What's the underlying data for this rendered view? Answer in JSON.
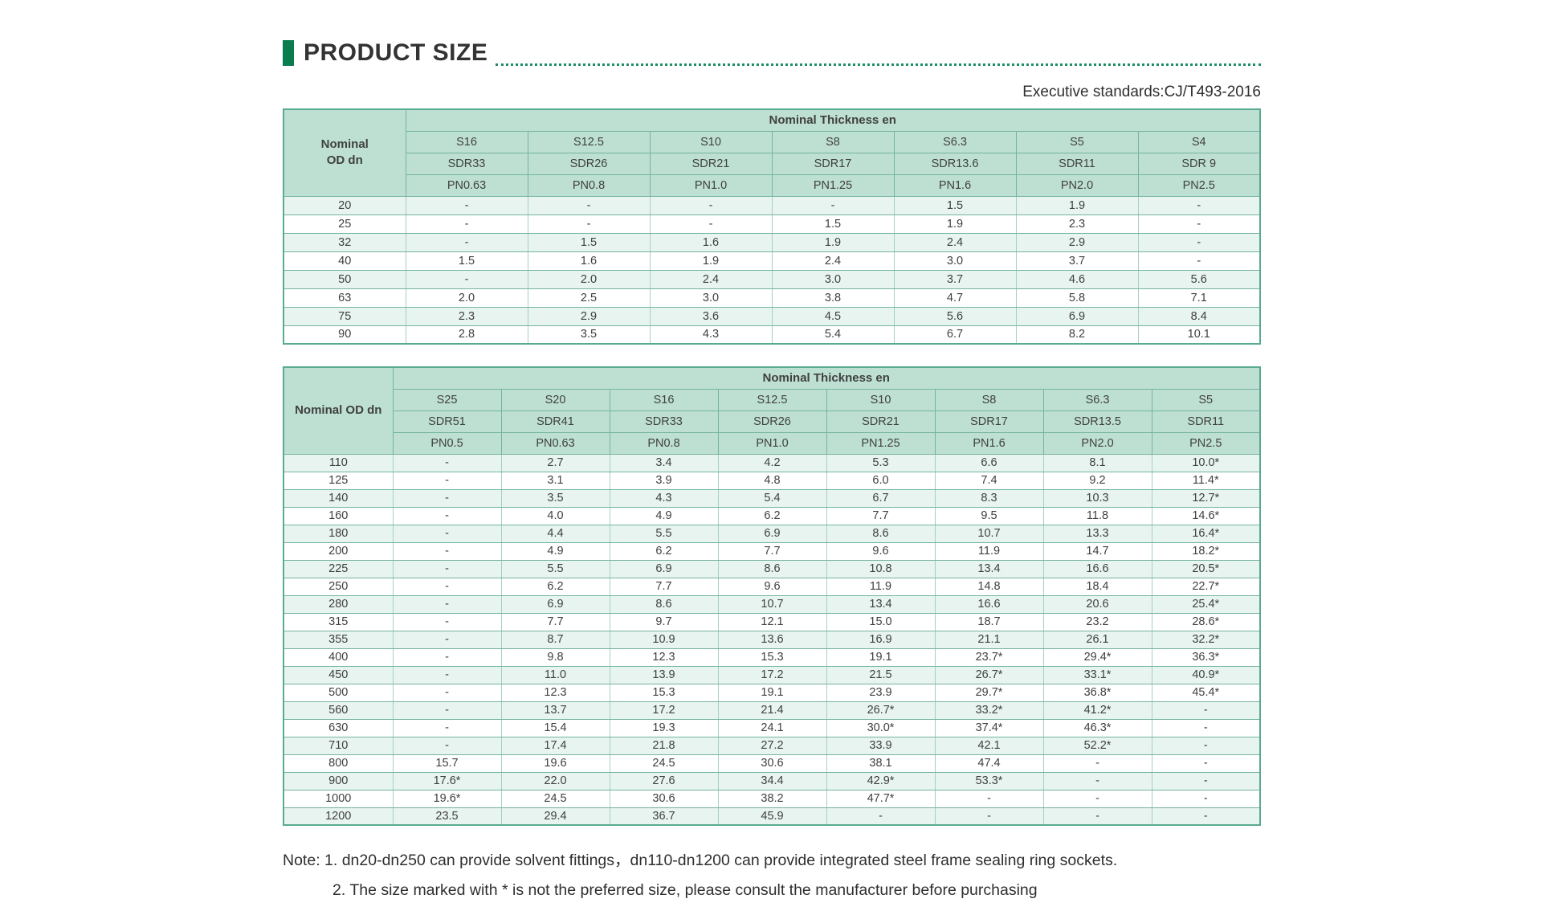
{
  "page": {
    "title": "PRODUCT SIZE",
    "standard": "Executive standards:CJ/T493-2016",
    "notes": [
      "Note: 1. dn20-dn250 can provide solvent fittings，dn110-dn1200 can provide integrated steel frame sealing ring sockets.",
      "2. The size marked with * is not the preferred size, please consult the manufacturer before purchasing"
    ]
  },
  "colors": {
    "accent": "#0a7d4f",
    "header_fill": "#bee0d3",
    "row_tint": "#e8f4ef",
    "border": "#74b4a0"
  },
  "table1": {
    "corner_line1": "Nominal",
    "corner_line2": "OD dn",
    "group_header": "Nominal Thickness en",
    "s_row": [
      "S16",
      "S12.5",
      "S10",
      "S8",
      "S6.3",
      "S5",
      "S4"
    ],
    "sdr_row": [
      "SDR33",
      "SDR26",
      "SDR21",
      "SDR17",
      "SDR13.6",
      "SDR11",
      "SDR 9"
    ],
    "pn_row": [
      "PN0.63",
      "PN0.8",
      "PN1.0",
      "PN1.25",
      "PN1.6",
      "PN2.0",
      "PN2.5"
    ],
    "rows": [
      {
        "dn": "20",
        "values": [
          "-",
          "-",
          "-",
          "-",
          "1.5",
          "1.9",
          "-"
        ]
      },
      {
        "dn": "25",
        "values": [
          "-",
          "-",
          "-",
          "1.5",
          "1.9",
          "2.3",
          "-"
        ]
      },
      {
        "dn": "32",
        "values": [
          "-",
          "1.5",
          "1.6",
          "1.9",
          "2.4",
          "2.9",
          "-"
        ]
      },
      {
        "dn": "40",
        "values": [
          "1.5",
          "1.6",
          "1.9",
          "2.4",
          "3.0",
          "3.7",
          "-"
        ]
      },
      {
        "dn": "50",
        "values": [
          "-",
          "2.0",
          "2.4",
          "3.0",
          "3.7",
          "4.6",
          "5.6"
        ]
      },
      {
        "dn": "63",
        "values": [
          "2.0",
          "2.5",
          "3.0",
          "3.8",
          "4.7",
          "5.8",
          "7.1"
        ]
      },
      {
        "dn": "75",
        "values": [
          "2.3",
          "2.9",
          "3.6",
          "4.5",
          "5.6",
          "6.9",
          "8.4"
        ]
      },
      {
        "dn": "90",
        "values": [
          "2.8",
          "3.5",
          "4.3",
          "5.4",
          "6.7",
          "8.2",
          "10.1"
        ]
      }
    ]
  },
  "table2": {
    "corner_label": "Nominal OD dn",
    "group_header": "Nominal Thickness en",
    "s_row": [
      "S25",
      "S20",
      "S16",
      "S12.5",
      "S10",
      "S8",
      "S6.3",
      "S5"
    ],
    "sdr_row": [
      "SDR51",
      "SDR41",
      "SDR33",
      "SDR26",
      "SDR21",
      "SDR17",
      "SDR13.5",
      "SDR11"
    ],
    "pn_row": [
      "PN0.5",
      "PN0.63",
      "PN0.8",
      "PN1.0",
      "PN1.25",
      "PN1.6",
      "PN2.0",
      "PN2.5"
    ],
    "rows": [
      {
        "dn": "110",
        "values": [
          "-",
          "2.7",
          "3.4",
          "4.2",
          "5.3",
          "6.6",
          "8.1",
          "10.0*"
        ]
      },
      {
        "dn": "125",
        "values": [
          "-",
          "3.1",
          "3.9",
          "4.8",
          "6.0",
          "7.4",
          "9.2",
          "11.4*"
        ]
      },
      {
        "dn": "140",
        "values": [
          "-",
          "3.5",
          "4.3",
          "5.4",
          "6.7",
          "8.3",
          "10.3",
          "12.7*"
        ]
      },
      {
        "dn": "160",
        "values": [
          "-",
          "4.0",
          "4.9",
          "6.2",
          "7.7",
          "9.5",
          "11.8",
          "14.6*"
        ]
      },
      {
        "dn": "180",
        "values": [
          "-",
          "4.4",
          "5.5",
          "6.9",
          "8.6",
          "10.7",
          "13.3",
          "16.4*"
        ]
      },
      {
        "dn": "200",
        "values": [
          "-",
          "4.9",
          "6.2",
          "7.7",
          "9.6",
          "11.9",
          "14.7",
          "18.2*"
        ]
      },
      {
        "dn": "225",
        "values": [
          "-",
          "5.5",
          "6.9",
          "8.6",
          "10.8",
          "13.4",
          "16.6",
          "20.5*"
        ]
      },
      {
        "dn": "250",
        "values": [
          "-",
          "6.2",
          "7.7",
          "9.6",
          "11.9",
          "14.8",
          "18.4",
          "22.7*"
        ]
      },
      {
        "dn": "280",
        "values": [
          "-",
          "6.9",
          "8.6",
          "10.7",
          "13.4",
          "16.6",
          "20.6",
          "25.4*"
        ]
      },
      {
        "dn": "315",
        "values": [
          "-",
          "7.7",
          "9.7",
          "12.1",
          "15.0",
          "18.7",
          "23.2",
          "28.6*"
        ]
      },
      {
        "dn": "355",
        "values": [
          "-",
          "8.7",
          "10.9",
          "13.6",
          "16.9",
          "21.1",
          "26.1",
          "32.2*"
        ]
      },
      {
        "dn": "400",
        "values": [
          "-",
          "9.8",
          "12.3",
          "15.3",
          "19.1",
          "23.7*",
          "29.4*",
          "36.3*"
        ]
      },
      {
        "dn": "450",
        "values": [
          "-",
          "11.0",
          "13.9",
          "17.2",
          "21.5",
          "26.7*",
          "33.1*",
          "40.9*"
        ]
      },
      {
        "dn": "500",
        "values": [
          "-",
          "12.3",
          "15.3",
          "19.1",
          "23.9",
          "29.7*",
          "36.8*",
          "45.4*"
        ]
      },
      {
        "dn": "560",
        "values": [
          "-",
          "13.7",
          "17.2",
          "21.4",
          "26.7*",
          "33.2*",
          "41.2*",
          "-"
        ]
      },
      {
        "dn": "630",
        "values": [
          "-",
          "15.4",
          "19.3",
          "24.1",
          "30.0*",
          "37.4*",
          "46.3*",
          "-"
        ]
      },
      {
        "dn": "710",
        "values": [
          "-",
          "17.4",
          "21.8",
          "27.2",
          "33.9",
          "42.1",
          "52.2*",
          "-"
        ]
      },
      {
        "dn": "800",
        "values": [
          "15.7",
          "19.6",
          "24.5",
          "30.6",
          "38.1",
          "47.4",
          "-",
          "-"
        ]
      },
      {
        "dn": "900",
        "values": [
          "17.6*",
          "22.0",
          "27.6",
          "34.4",
          "42.9*",
          "53.3*",
          "-",
          "-"
        ]
      },
      {
        "dn": "1000",
        "values": [
          "19.6*",
          "24.5",
          "30.6",
          "38.2",
          "47.7*",
          "-",
          "-",
          "-"
        ]
      },
      {
        "dn": "1200",
        "values": [
          "23.5",
          "29.4",
          "36.7",
          "45.9",
          "-",
          "-",
          "-",
          "-"
        ]
      }
    ]
  }
}
